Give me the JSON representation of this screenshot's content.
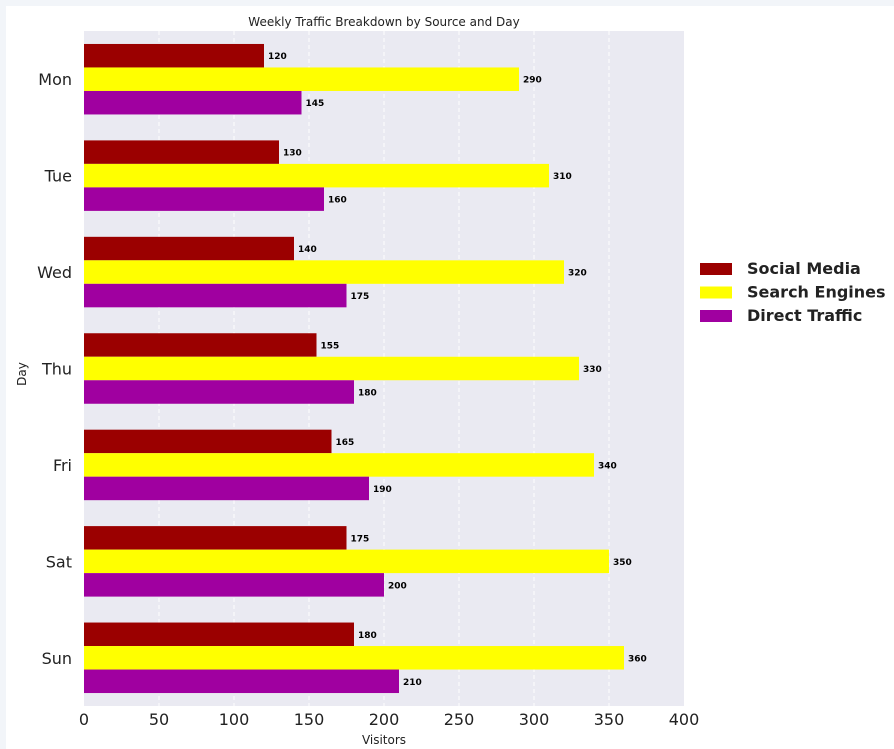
{
  "chart_data": {
    "type": "bar",
    "orientation": "horizontal",
    "title": "Weekly Traffic Breakdown by Source and Day",
    "xlabel": "Visitors",
    "ylabel": "Day",
    "categories": [
      "Mon",
      "Tue",
      "Wed",
      "Thu",
      "Fri",
      "Sat",
      "Sun"
    ],
    "series": [
      {
        "name": "Social Media",
        "color": "#9b0000",
        "values": [
          120,
          130,
          140,
          155,
          165,
          175,
          180
        ]
      },
      {
        "name": "Search Engines",
        "color": "#ffff00",
        "values": [
          290,
          310,
          320,
          330,
          340,
          350,
          360
        ]
      },
      {
        "name": "Direct Traffic",
        "color": "#a000a0",
        "values": [
          145,
          160,
          175,
          180,
          190,
          200,
          210
        ]
      }
    ],
    "xlim": [
      0,
      400
    ],
    "xticks": [
      0,
      50,
      100,
      150,
      200,
      250,
      300,
      350,
      400
    ],
    "grid": true,
    "legend_position": "right",
    "plot_background": "#eaeaf2"
  }
}
